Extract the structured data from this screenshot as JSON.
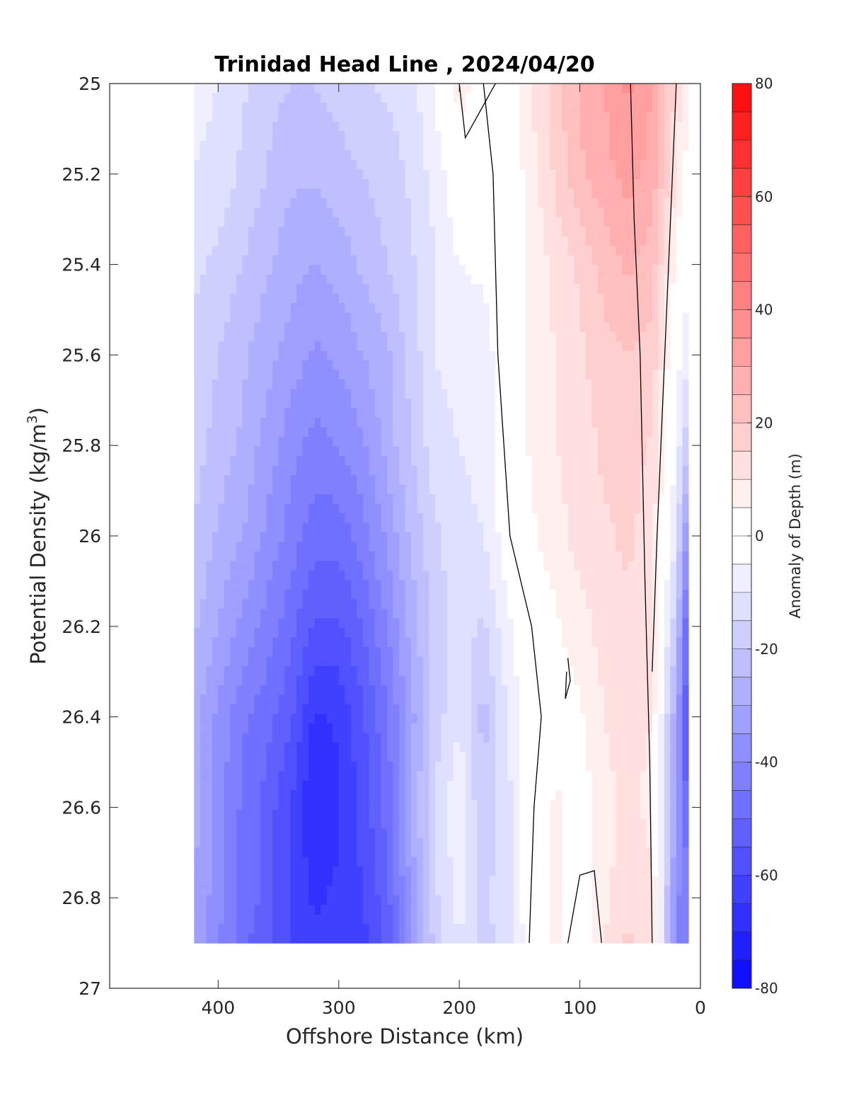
{
  "chart_data": {
    "type": "heatmap",
    "title": "Trinidad Head Line , 2024/04/20",
    "xlabel": "Offshore Distance (km)",
    "ylabel_main": "Potential Density (kg/m",
    "ylabel_sup": "3",
    "ylabel_close": ")",
    "colorbar_label": "Anomaly of Depth (m)",
    "xlim": [
      490,
      0
    ],
    "ylim": [
      25,
      27
    ],
    "y_reversed": true,
    "x_reversed": true,
    "x_ticks": [
      400,
      300,
      200,
      100,
      0
    ],
    "x_tick_labels": [
      "400",
      "300",
      "200",
      "100",
      "0"
    ],
    "y_ticks": [
      25,
      25.2,
      25.4,
      25.6,
      25.8,
      26,
      26.2,
      26.4,
      26.6,
      26.8,
      27
    ],
    "y_tick_labels": [
      "25",
      "25.2",
      "25.4",
      "25.6",
      "25.8",
      "26",
      "26.2",
      "26.4",
      "26.6",
      "26.8",
      "27"
    ],
    "colorbar": {
      "range": [
        -80,
        80
      ],
      "levels_step": 5,
      "tick_values": [
        80,
        60,
        40,
        20,
        0,
        -20,
        -40,
        -60,
        -80
      ],
      "tick_labels": [
        "80",
        "60",
        "40",
        "20",
        "0",
        "-20",
        "-40",
        "-60",
        "-80"
      ],
      "colormap": "blue-white-red",
      "neg_color": "#0000ff",
      "pos_color": "#ff0000",
      "zero_color": "#ffffff"
    },
    "x": [
      420,
      400,
      380,
      360,
      340,
      320,
      300,
      280,
      260,
      240,
      220,
      200,
      180,
      160,
      140,
      120,
      100,
      80,
      60,
      40,
      20,
      10
    ],
    "y": [
      25,
      25.2,
      25.4,
      25.6,
      25.8,
      26,
      26.2,
      26.4,
      26.6,
      26.8,
      26.9
    ],
    "z": [
      [
        -8,
        -10,
        -14,
        -18,
        -20,
        -20,
        -18,
        -16,
        -14,
        -12,
        -4,
        8,
        2,
        0,
        10,
        18,
        26,
        30,
        36,
        30,
        14,
        5
      ],
      [
        -10,
        -12,
        -16,
        -20,
        -24,
        -24,
        -22,
        -20,
        -18,
        -14,
        -8,
        0,
        0,
        0,
        8,
        16,
        24,
        28,
        32,
        28,
        10,
        2
      ],
      [
        -14,
        -16,
        -20,
        -24,
        -28,
        -30,
        -28,
        -24,
        -20,
        -16,
        -10,
        -5,
        -4,
        0,
        6,
        12,
        16,
        22,
        26,
        22,
        4,
        -4
      ],
      [
        -16,
        -20,
        -24,
        -28,
        -32,
        -36,
        -34,
        -30,
        -26,
        -18,
        -10,
        -8,
        -8,
        0,
        6,
        10,
        14,
        18,
        20,
        18,
        -2,
        -10
      ],
      [
        -18,
        -22,
        -26,
        -32,
        -38,
        -42,
        -40,
        -36,
        -28,
        -20,
        -12,
        -10,
        -8,
        0,
        6,
        10,
        12,
        16,
        18,
        14,
        -6,
        -20
      ],
      [
        -20,
        -26,
        -30,
        -36,
        -42,
        -48,
        -48,
        -42,
        -34,
        -24,
        -16,
        -12,
        -10,
        -2,
        4,
        8,
        12,
        14,
        16,
        12,
        -10,
        -40
      ],
      [
        -24,
        -30,
        -36,
        -42,
        -48,
        -56,
        -56,
        -50,
        -40,
        -28,
        -18,
        -12,
        -16,
        -6,
        0,
        4,
        8,
        12,
        14,
        10,
        -20,
        -55
      ],
      [
        -28,
        -36,
        -44,
        -48,
        -54,
        -66,
        -64,
        -56,
        -46,
        -32,
        -18,
        -10,
        -22,
        -10,
        0,
        2,
        4,
        10,
        12,
        10,
        -30,
        -60
      ],
      [
        -28,
        -38,
        -46,
        -52,
        -60,
        -70,
        -66,
        -58,
        -48,
        -30,
        -14,
        -6,
        -20,
        -12,
        0,
        6,
        2,
        8,
        12,
        8,
        -30,
        -55
      ],
      [
        -30,
        -38,
        -46,
        -52,
        -60,
        -66,
        -64,
        -60,
        -52,
        -34,
        -16,
        -8,
        -16,
        -12,
        0,
        6,
        0,
        8,
        14,
        12,
        -40,
        -40
      ],
      [
        -30,
        -40,
        -48,
        -54,
        -60,
        -64,
        -64,
        -62,
        -54,
        -36,
        -18,
        -10,
        -16,
        -14,
        0,
        8,
        0,
        10,
        16,
        12,
        -40,
        -40
      ]
    ],
    "missing_regions": [
      {
        "description": "no data offshore of 420 km",
        "x_range": [
          490,
          420
        ]
      },
      {
        "description": "no data near shore inshore of 10 km",
        "x_range": [
          10,
          0
        ]
      },
      {
        "description": "no data below 26.9 kg/m3",
        "y_range": [
          26.9,
          27
        ]
      }
    ],
    "zero_contours": [
      [
        [
          200,
          25.0
        ],
        [
          195,
          25.12
        ],
        [
          170,
          25.0
        ]
      ],
      [
        [
          180,
          25.0
        ],
        [
          172,
          25.2
        ],
        [
          168,
          25.6
        ],
        [
          158,
          26.0
        ],
        [
          140,
          26.2
        ],
        [
          132,
          26.4
        ],
        [
          138,
          26.6
        ],
        [
          142,
          26.9
        ]
      ],
      [
        [
          40,
          26.9
        ],
        [
          42,
          26.5
        ],
        [
          46,
          26.1
        ],
        [
          50,
          25.6
        ],
        [
          55,
          25.3
        ],
        [
          58,
          25.0
        ]
      ],
      [
        [
          110,
          26.27
        ],
        [
          108,
          26.32
        ],
        [
          112,
          26.36
        ],
        [
          111,
          26.3
        ]
      ],
      [
        [
          110,
          26.9
        ],
        [
          100,
          26.75
        ],
        [
          88,
          26.74
        ],
        [
          82,
          26.9
        ]
      ],
      [
        [
          20,
          25.0
        ],
        [
          24,
          25.25
        ],
        [
          28,
          25.5
        ],
        [
          32,
          25.75
        ],
        [
          36,
          26.0
        ],
        [
          40,
          26.3
        ]
      ]
    ]
  }
}
